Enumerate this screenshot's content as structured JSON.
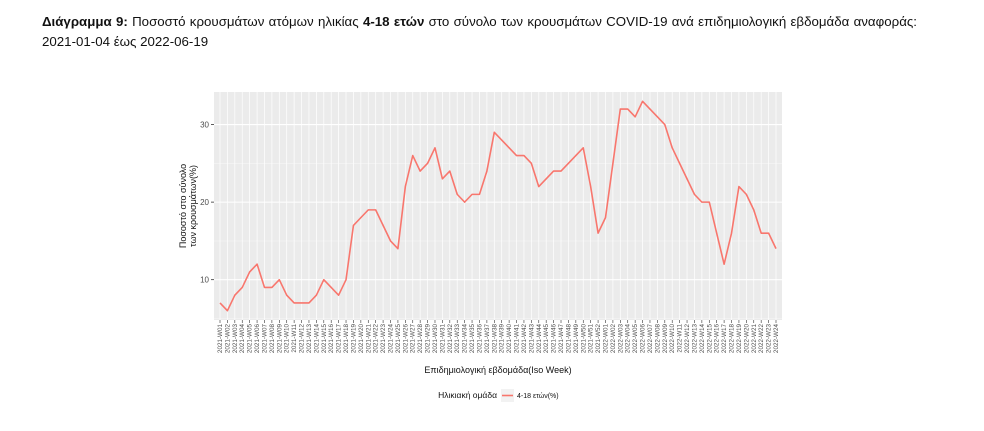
{
  "caption": {
    "label": "Διάγραμμα 9:",
    "text_a": " Ποσοστό κρουσμάτων ατόμων ηλικίας ",
    "bold_group": "4-18 ετών",
    "text_b": " στο σύνολο των κρουσμάτων COVID-19 ανά επιδημιολογική εβδομάδα αναφοράς: 2021-01-04 έως 2022-06-19"
  },
  "chart_data": {
    "type": "line",
    "title": "",
    "xlabel": "Επιδημιολογική εβδομάδα(Iso Week)",
    "ylabel_lines": [
      "Ποσοστό στο σύνολο",
      "των κρουσμάτων(%)"
    ],
    "ylim": [
      4.8,
      34.2
    ],
    "yticks": [
      10,
      20,
      30
    ],
    "grid": true,
    "legend": {
      "position": "bottom",
      "title": "Ηλικιακή ομάδα"
    },
    "categories": [
      "2021-W01",
      "2021-W02",
      "2021-W03",
      "2021-W04",
      "2021-W05",
      "2021-W06",
      "2021-W07",
      "2021-W08",
      "2021-W09",
      "2021-W10",
      "2021-W11",
      "2021-W12",
      "2021-W13",
      "2021-W14",
      "2021-W15",
      "2021-W16",
      "2021-W17",
      "2021-W18",
      "2021-W19",
      "2021-W20",
      "2021-W21",
      "2021-W22",
      "2021-W23",
      "2021-W24",
      "2021-W25",
      "2021-W26",
      "2021-W27",
      "2021-W28",
      "2021-W29",
      "2021-W30",
      "2021-W31",
      "2021-W32",
      "2021-W33",
      "2021-W34",
      "2021-W35",
      "2021-W36",
      "2021-W37",
      "2021-W38",
      "2021-W39",
      "2021-W40",
      "2021-W41",
      "2021-W42",
      "2021-W43",
      "2021-W44",
      "2021-W45",
      "2021-W46",
      "2021-W47",
      "2021-W48",
      "2021-W49",
      "2021-W50",
      "2021-W51",
      "2021-W52",
      "2022-W01",
      "2022-W02",
      "2022-W03",
      "2022-W04",
      "2022-W05",
      "2022-W06",
      "2022-W07",
      "2022-W08",
      "2022-W09",
      "2022-W10",
      "2022-W11",
      "2022-W12",
      "2022-W13",
      "2022-W14",
      "2022-W15",
      "2022-W16",
      "2022-W17",
      "2022-W18",
      "2022-W19",
      "2022-W20",
      "2022-W21",
      "2022-W22",
      "2022-W23",
      "2022-W24"
    ],
    "series": [
      {
        "name": "4-18 ετών(%)",
        "color": "#f8766d",
        "values": [
          7,
          6,
          8,
          9,
          11,
          12,
          9,
          9,
          10,
          8,
          7,
          7,
          7,
          8,
          10,
          9,
          8,
          10,
          17,
          18,
          19,
          19,
          17,
          15,
          14,
          22,
          26,
          24,
          25,
          27,
          23,
          24,
          21,
          20,
          21,
          21,
          24,
          29,
          28,
          27,
          26,
          26,
          25,
          22,
          23,
          24,
          24,
          25,
          26,
          27,
          22,
          16,
          18,
          25,
          32,
          32,
          31,
          33,
          32,
          31,
          30,
          27,
          25,
          23,
          21,
          20,
          20,
          16,
          12,
          16,
          22,
          21,
          19,
          16,
          16,
          14
        ]
      }
    ]
  }
}
